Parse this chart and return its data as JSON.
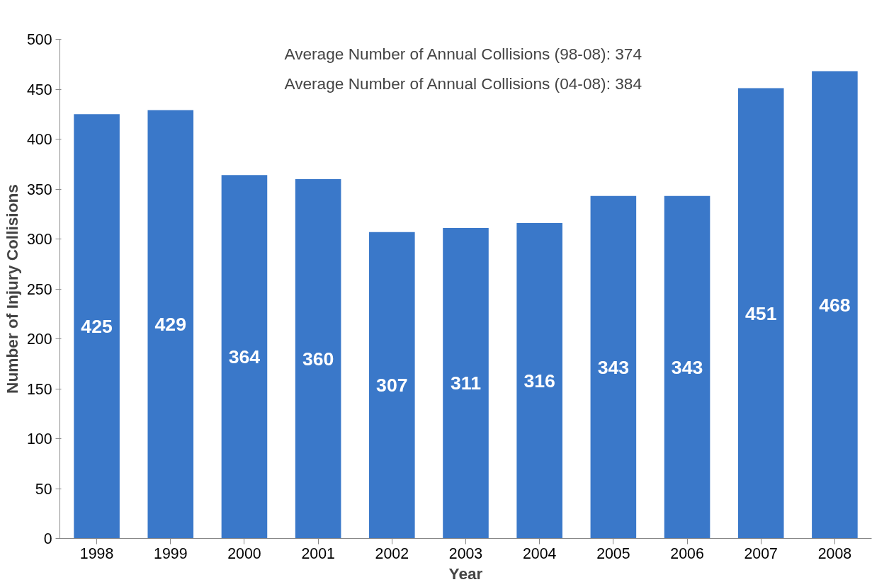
{
  "chart_data": {
    "type": "bar",
    "xlabel": "Year",
    "ylabel": "Number of Injury Collisions",
    "categories": [
      "1998",
      "1999",
      "2000",
      "2001",
      "2002",
      "2003",
      "2004",
      "2005",
      "2006",
      "2007",
      "2008"
    ],
    "values": [
      425,
      429,
      364,
      360,
      307,
      311,
      316,
      343,
      343,
      451,
      468
    ],
    "color": "#3a78c9",
    "ylim": [
      0,
      500
    ],
    "yticks": [
      0,
      50,
      100,
      150,
      200,
      250,
      300,
      350,
      400,
      450,
      500
    ],
    "grid": false,
    "data_labels": true,
    "annotations": [
      "Average Number of Annual Collisions  (98-08): 374",
      "Average Number of Annual Collisions  (04-08): 384"
    ]
  }
}
